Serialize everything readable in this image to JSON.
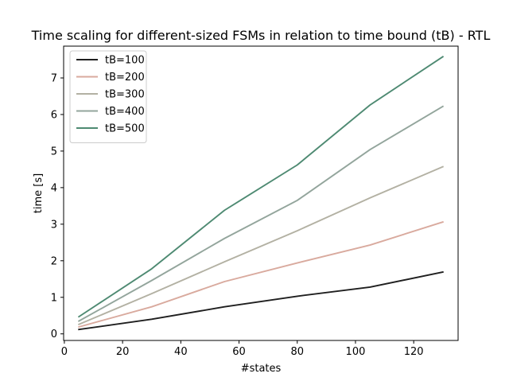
{
  "chart_data": {
    "type": "line",
    "title": "Time scaling for different-sized FSMs in relation to time bound (tB) - RTL",
    "xlabel": "#states",
    "ylabel": "time [s]",
    "xlim": [
      -0.25,
      135.25
    ],
    "ylim": [
      -0.18,
      7.87
    ],
    "xticks": [
      0,
      20,
      40,
      60,
      80,
      100,
      120
    ],
    "yticks": [
      0,
      1,
      2,
      3,
      4,
      5,
      6,
      7
    ],
    "grid": false,
    "legend_position": "top-left",
    "x": [
      5,
      30,
      55,
      80,
      105,
      130
    ],
    "series": [
      {
        "name": "tB=100",
        "color": "#1f1f1f",
        "values": [
          0.12,
          0.4,
          0.74,
          1.03,
          1.28,
          1.69
        ]
      },
      {
        "name": "tB=200",
        "color": "#d9aa9e",
        "values": [
          0.19,
          0.74,
          1.43,
          1.94,
          2.43,
          3.06
        ]
      },
      {
        "name": "tB=300",
        "color": "#b3b1a3",
        "values": [
          0.26,
          1.1,
          1.97,
          2.82,
          3.72,
          4.57
        ]
      },
      {
        "name": "tB=400",
        "color": "#93a59c",
        "values": [
          0.35,
          1.46,
          2.61,
          3.65,
          5.04,
          6.22
        ]
      },
      {
        "name": "tB=500",
        "color": "#4e8a72",
        "values": [
          0.47,
          1.78,
          3.38,
          4.62,
          6.26,
          7.58
        ]
      }
    ]
  }
}
